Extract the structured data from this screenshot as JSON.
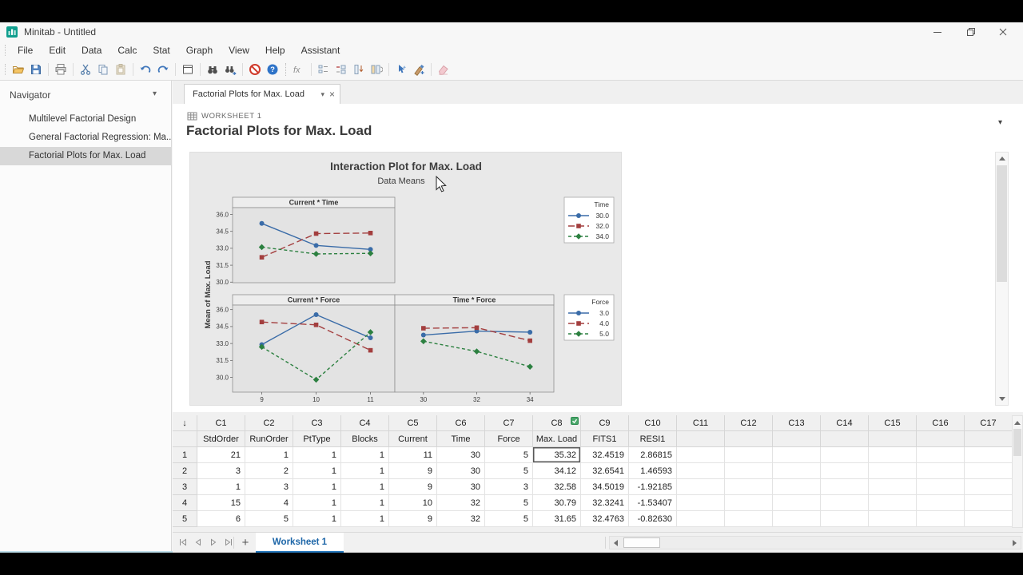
{
  "icons": {
    "chevron_down": "▾",
    "close": "×",
    "column_arrow": "↓",
    "plus": "+"
  },
  "window": {
    "title": "Minitab - Untitled"
  },
  "menu": {
    "items": [
      "File",
      "Edit",
      "Data",
      "Calc",
      "Stat",
      "Graph",
      "View",
      "Help",
      "Assistant"
    ]
  },
  "toolbar": {
    "icons": [
      "open",
      "save",
      "sep",
      "print",
      "sep",
      "cut",
      "copy",
      "paste",
      "sep",
      "undo",
      "redo",
      "sep",
      "new-graph-window",
      "sep",
      "find",
      "find-next",
      "sep",
      "cancel",
      "help",
      "dots",
      "formula",
      "sep",
      "insert-cells",
      "delete-cells",
      "insert-rows",
      "copy-columns",
      "sep",
      "edit-last-dialog",
      "graph-editor",
      "sep",
      "erase"
    ]
  },
  "navigator": {
    "title": "Navigator",
    "items": [
      {
        "label": "Multilevel Factorial Design",
        "selected": false
      },
      {
        "label": "General Factorial Regression: Ma...",
        "selected": false
      },
      {
        "label": "Factorial Plots for Max. Load",
        "selected": true
      }
    ]
  },
  "tab": {
    "label": "Factorial Plots for Max. Load"
  },
  "output": {
    "worksheet_label": "WORKSHEET 1",
    "title": "Factorial Plots for Max. Load"
  },
  "chart_data": {
    "type": "line",
    "title": "Interaction Plot for Max. Load",
    "subtitle": "Data Means",
    "ylabel": "Mean of Max. Load",
    "yticks": [
      36.0,
      34.5,
      33.0,
      31.5,
      30.0
    ],
    "palette": {
      "colors": [
        "#3a6ca8",
        "#a33e3e",
        "#2c8040"
      ],
      "markers": [
        "circle",
        "square",
        "diamond"
      ],
      "dashes": [
        "",
        "8,4",
        "4,3"
      ]
    },
    "panels": [
      {
        "title": "Current * Time",
        "row": 0,
        "col": 0,
        "x_labels": [
          "9",
          "10",
          "11"
        ],
        "series": [
          {
            "name": "30.0",
            "values": [
              35.2,
              33.25,
              32.9
            ]
          },
          {
            "name": "32.0",
            "values": [
              32.2,
              34.3,
              34.35
            ]
          },
          {
            "name": "34.0",
            "values": [
              33.1,
              32.5,
              32.55
            ]
          }
        ]
      },
      {
        "title": "Current * Force",
        "row": 1,
        "col": 0,
        "x_labels": [
          "9",
          "10",
          "11"
        ],
        "series": [
          {
            "name": "3.0",
            "values": [
              32.9,
              35.55,
              33.5
            ]
          },
          {
            "name": "4.0",
            "values": [
              34.9,
              34.65,
              32.4
            ]
          },
          {
            "name": "5.0",
            "values": [
              32.7,
              29.8,
              34.0
            ]
          }
        ]
      },
      {
        "title": "Time * Force",
        "row": 1,
        "col": 1,
        "x_labels": [
          "30",
          "32",
          "34"
        ],
        "series": [
          {
            "name": "3.0",
            "values": [
              33.75,
              34.1,
              34.0
            ]
          },
          {
            "name": "4.0",
            "values": [
              34.35,
              34.4,
              33.25
            ]
          },
          {
            "name": "5.0",
            "values": [
              33.2,
              32.3,
              30.95
            ]
          }
        ]
      }
    ],
    "legends": [
      {
        "title": "Time",
        "entries": [
          "30.0",
          "32.0",
          "34.0"
        ]
      },
      {
        "title": "Force",
        "entries": [
          "3.0",
          "4.0",
          "5.0"
        ]
      }
    ]
  },
  "table": {
    "columns": [
      {
        "id": "C1",
        "name": "StdOrder"
      },
      {
        "id": "C2",
        "name": "RunOrder"
      },
      {
        "id": "C3",
        "name": "PtType"
      },
      {
        "id": "C4",
        "name": "Blocks"
      },
      {
        "id": "C5",
        "name": "Current"
      },
      {
        "id": "C6",
        "name": "Time"
      },
      {
        "id": "C7",
        "name": "Force"
      },
      {
        "id": "C8",
        "name": "Max. Load"
      },
      {
        "id": "C9",
        "name": "FITS1"
      },
      {
        "id": "C10",
        "name": "RESI1"
      },
      {
        "id": "C11",
        "name": ""
      },
      {
        "id": "C12",
        "name": ""
      },
      {
        "id": "C13",
        "name": ""
      },
      {
        "id": "C14",
        "name": ""
      },
      {
        "id": "C15",
        "name": ""
      },
      {
        "id": "C16",
        "name": ""
      },
      {
        "id": "C17",
        "name": ""
      }
    ],
    "flagged_column": "C8",
    "selected_cell": {
      "row": 1,
      "column": "C8"
    },
    "rows": [
      {
        "n": "1",
        "values": [
          "21",
          "1",
          "1",
          "1",
          "11",
          "30",
          "5",
          "35.32",
          "32.4519",
          "2.86815"
        ]
      },
      {
        "n": "2",
        "values": [
          "3",
          "2",
          "1",
          "1",
          "9",
          "30",
          "5",
          "34.12",
          "32.6541",
          "1.46593"
        ]
      },
      {
        "n": "3",
        "values": [
          "1",
          "3",
          "1",
          "1",
          "9",
          "30",
          "3",
          "32.58",
          "34.5019",
          "-1.92185"
        ]
      },
      {
        "n": "4",
        "values": [
          "15",
          "4",
          "1",
          "1",
          "10",
          "32",
          "5",
          "30.79",
          "32.3241",
          "-1.53407"
        ]
      },
      {
        "n": "5",
        "values": [
          "6",
          "5",
          "1",
          "1",
          "9",
          "32",
          "5",
          "31.65",
          "32.4763",
          "-0.82630"
        ]
      }
    ]
  },
  "bottom_bar": {
    "tab": "Worksheet 1"
  }
}
